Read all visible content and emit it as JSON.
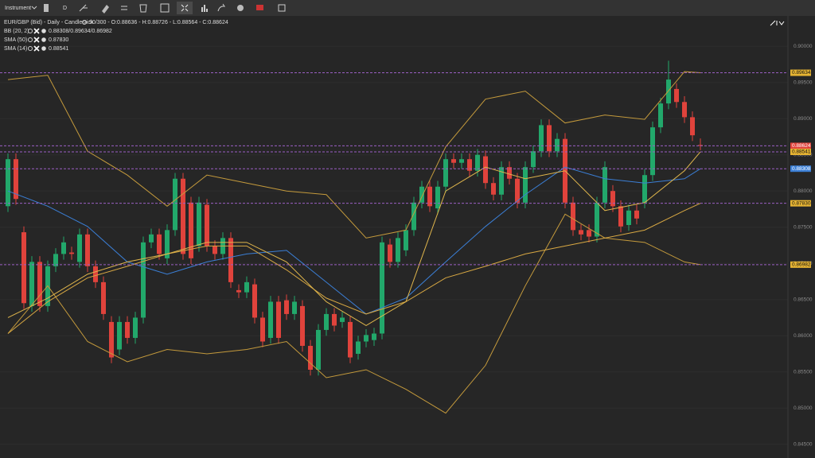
{
  "toolbar": {
    "instrument": "Instrument",
    "interval": "D"
  },
  "chart_data": {
    "type": "candlestick",
    "title": "EUR/GBP (Bid) - Daily - Candlestick",
    "readout": "90/300 - O:0.88636 - H:0.88726 - L:0.88564 - C:0.88624",
    "ylim": [
      0.8431,
      0.9042
    ],
    "yticks": [
      {
        "value": 0.9,
        "label": "0.90000"
      },
      {
        "value": 0.895,
        "label": "0.89500"
      },
      {
        "value": 0.89,
        "label": "0.89000"
      },
      {
        "value": 0.885,
        "label": "0.88500"
      },
      {
        "value": 0.88,
        "label": "0.88000"
      },
      {
        "value": 0.875,
        "label": "0.87500"
      },
      {
        "value": 0.87,
        "label": "0.87000"
      },
      {
        "value": 0.865,
        "label": "0.86500"
      },
      {
        "value": 0.86,
        "label": "0.86000"
      },
      {
        "value": 0.855,
        "label": "0.85500"
      },
      {
        "value": 0.85,
        "label": "0.85000"
      },
      {
        "value": 0.845,
        "label": "0.84500"
      }
    ],
    "up_color": "#22a86b",
    "down_color": "#e0433c",
    "open": [
      0.8779,
      0.8844,
      0.8743,
      0.8641,
      0.8702,
      0.8641,
      0.8696,
      0.8713,
      0.8715,
      0.8702,
      0.874,
      0.8696,
      0.8674,
      0.8619,
      0.8581,
      0.8619,
      0.8597,
      0.8625,
      0.8729,
      0.874,
      0.8707,
      0.8746,
      0.8817,
      0.8784,
      0.8724,
      0.8781,
      0.8724,
      0.8713,
      0.8735,
      0.8663,
      0.866,
      0.8671,
      0.8625,
      0.8597,
      0.8647,
      0.8649,
      0.863,
      0.8641,
      0.8586,
      0.8553,
      0.8608,
      0.863,
      0.8619,
      0.8619,
      0.8575,
      0.8592,
      0.8594,
      0.8603,
      0.8726,
      0.8702,
      0.8718,
      0.8746,
      0.8784,
      0.8806,
      0.8776,
      0.8806,
      0.8844,
      0.8839,
      0.8844,
      0.8828,
      0.8848,
      0.8811,
      0.8795,
      0.8833,
      0.8817,
      0.8784,
      0.8833,
      0.8855,
      0.8891,
      0.8855,
      0.8872,
      0.8784,
      0.8746,
      0.8746,
      0.8737,
      0.8784,
      0.88,
      0.8779,
      0.8753,
      0.8773,
      0.8784,
      0.8822,
      0.8888,
      0.8921,
      0.8941,
      0.8923,
      0.8902,
      0.88636
    ],
    "high": [
      0.8852,
      0.8852,
      0.8751,
      0.871,
      0.871,
      0.8704,
      0.8721,
      0.8737,
      0.8723,
      0.8748,
      0.8748,
      0.8704,
      0.8682,
      0.8627,
      0.8627,
      0.8627,
      0.8633,
      0.8737,
      0.8748,
      0.8748,
      0.8754,
      0.8825,
      0.8825,
      0.8792,
      0.8792,
      0.8789,
      0.8732,
      0.8743,
      0.8743,
      0.8671,
      0.8682,
      0.8679,
      0.8633,
      0.8655,
      0.8655,
      0.8657,
      0.8655,
      0.8649,
      0.8594,
      0.8616,
      0.8638,
      0.8638,
      0.8633,
      0.8627,
      0.86,
      0.8609,
      0.8611,
      0.8737,
      0.8734,
      0.8743,
      0.8754,
      0.8792,
      0.8814,
      0.8814,
      0.8814,
      0.8852,
      0.8852,
      0.8852,
      0.8852,
      0.8858,
      0.8856,
      0.8819,
      0.8841,
      0.8841,
      0.8825,
      0.8841,
      0.8863,
      0.8899,
      0.8899,
      0.888,
      0.888,
      0.8792,
      0.8754,
      0.8754,
      0.8792,
      0.8841,
      0.8808,
      0.8787,
      0.8781,
      0.8781,
      0.883,
      0.8896,
      0.8929,
      0.898,
      0.8949,
      0.8931,
      0.891,
      0.88726
    ],
    "low": [
      0.8771,
      0.8781,
      0.8637,
      0.8633,
      0.8633,
      0.8633,
      0.8688,
      0.8705,
      0.8705,
      0.8694,
      0.8688,
      0.8666,
      0.8622,
      0.8562,
      0.8573,
      0.8589,
      0.8589,
      0.8617,
      0.8721,
      0.8705,
      0.8699,
      0.8738,
      0.8705,
      0.8699,
      0.8716,
      0.8716,
      0.8705,
      0.8705,
      0.8666,
      0.8652,
      0.8652,
      0.8617,
      0.8584,
      0.8589,
      0.8589,
      0.8622,
      0.8622,
      0.8578,
      0.8545,
      0.8545,
      0.86,
      0.8606,
      0.8611,
      0.8562,
      0.8567,
      0.8584,
      0.8586,
      0.8595,
      0.8694,
      0.8694,
      0.871,
      0.8738,
      0.8776,
      0.8771,
      0.8768,
      0.8798,
      0.8831,
      0.8831,
      0.882,
      0.882,
      0.8803,
      0.8787,
      0.8787,
      0.8809,
      0.8776,
      0.8776,
      0.8825,
      0.8847,
      0.8847,
      0.8847,
      0.8776,
      0.8738,
      0.8732,
      0.8729,
      0.8729,
      0.8776,
      0.8771,
      0.8743,
      0.8745,
      0.8754,
      0.8776,
      0.8814,
      0.888,
      0.8913,
      0.8915,
      0.8894,
      0.8869,
      0.88564
    ],
    "close": [
      0.8844,
      0.8789,
      0.8645,
      0.8702,
      0.8641,
      0.8696,
      0.8713,
      0.8729,
      0.8713,
      0.874,
      0.8696,
      0.8674,
      0.863,
      0.857,
      0.8619,
      0.8597,
      0.8625,
      0.8729,
      0.874,
      0.8713,
      0.8746,
      0.8817,
      0.8713,
      0.8707,
      0.8784,
      0.8724,
      0.8713,
      0.8735,
      0.8674,
      0.866,
      0.8674,
      0.8625,
      0.8592,
      0.8647,
      0.8597,
      0.863,
      0.8647,
      0.8586,
      0.8553,
      0.8608,
      0.863,
      0.8614,
      0.8625,
      0.857,
      0.8592,
      0.8601,
      0.8603,
      0.8729,
      0.8702,
      0.8735,
      0.8746,
      0.8784,
      0.8806,
      0.8779,
      0.8806,
      0.8844,
      0.8839,
      0.8844,
      0.8828,
      0.885,
      0.8811,
      0.8795,
      0.8833,
      0.8817,
      0.8784,
      0.8833,
      0.8855,
      0.8891,
      0.8855,
      0.8872,
      0.8784,
      0.8746,
      0.874,
      0.8737,
      0.8784,
      0.8833,
      0.8779,
      0.8751,
      0.8773,
      0.8762,
      0.8822,
      0.8888,
      0.8921,
      0.8954,
      0.8923,
      0.8902,
      0.8877,
      0.88624
    ],
    "line_x": [
      0,
      5,
      10,
      15,
      20,
      25,
      30,
      35,
      40,
      45,
      50,
      55,
      60,
      65,
      70,
      75,
      80,
      85,
      87
    ],
    "indicators": [
      {
        "name": "BB (20, 2)",
        "readout": "0.88308/0.89634/0.86982",
        "series": [
          {
            "color": "#3b7fd6",
            "values": [
              0.88,
              0.8779,
              0.8751,
              0.8702,
              0.8685,
              0.8702,
              0.8713,
              0.8718,
              0.8674,
              0.863,
              0.8652,
              0.8702,
              0.8751,
              0.8795,
              0.8833,
              0.8817,
              0.8811,
              0.8817,
              0.88308
            ]
          },
          {
            "color": "#c49a3c",
            "values": [
              0.8954,
              0.896,
              0.8855,
              0.8822,
              0.8779,
              0.8822,
              0.8811,
              0.88,
              0.8795,
              0.8735,
              0.8746,
              0.8861,
              0.8927,
              0.8938,
              0.8894,
              0.8905,
              0.8899,
              0.8965,
              0.89634
            ]
          },
          {
            "color": "#c49a3c",
            "values": [
              0.8603,
              0.8669,
              0.8592,
              0.8564,
              0.8581,
              0.8575,
              0.8581,
              0.8592,
              0.8542,
              0.8553,
              0.8526,
              0.8493,
              0.8559,
              0.8669,
              0.8768,
              0.8735,
              0.8729,
              0.8702,
              0.86982
            ]
          }
        ]
      },
      {
        "name": "SMA (50)",
        "readout": "0.87830",
        "series": [
          {
            "color": "#d8a843",
            "values": [
              0.8603,
              0.8647,
              0.868,
              0.8696,
              0.8713,
              0.8724,
              0.8724,
              0.8691,
              0.8652,
              0.863,
              0.8647,
              0.868,
              0.8696,
              0.8713,
              0.8724,
              0.8735,
              0.8746,
              0.8773,
              0.8783
            ]
          }
        ]
      },
      {
        "name": "SMA (14)",
        "readout": "0.88541",
        "series": [
          {
            "color": "#e0b64c",
            "values": [
              0.8625,
              0.8652,
              0.8685,
              0.8702,
              0.8713,
              0.8729,
              0.8729,
              0.8702,
              0.8647,
              0.8614,
              0.8647,
              0.88,
              0.8833,
              0.8817,
              0.8828,
              0.8773,
              0.8784,
              0.8828,
              0.88541
            ]
          }
        ]
      }
    ],
    "price_tags": [
      {
        "value": 0.89634,
        "label": "0.89634",
        "color": "#e6b433"
      },
      {
        "value": 0.88624,
        "label": "0.88624",
        "color": "#e0433c"
      },
      {
        "value": 0.88541,
        "label": "0.88541",
        "color": "#e6b433"
      },
      {
        "value": 0.88308,
        "label": "0.88308",
        "color": "#3b7fd6"
      },
      {
        "value": 0.8783,
        "label": "0.87830",
        "color": "#e6b433"
      },
      {
        "value": 0.86982,
        "label": "0.86982",
        "color": "#e6b433"
      }
    ]
  }
}
